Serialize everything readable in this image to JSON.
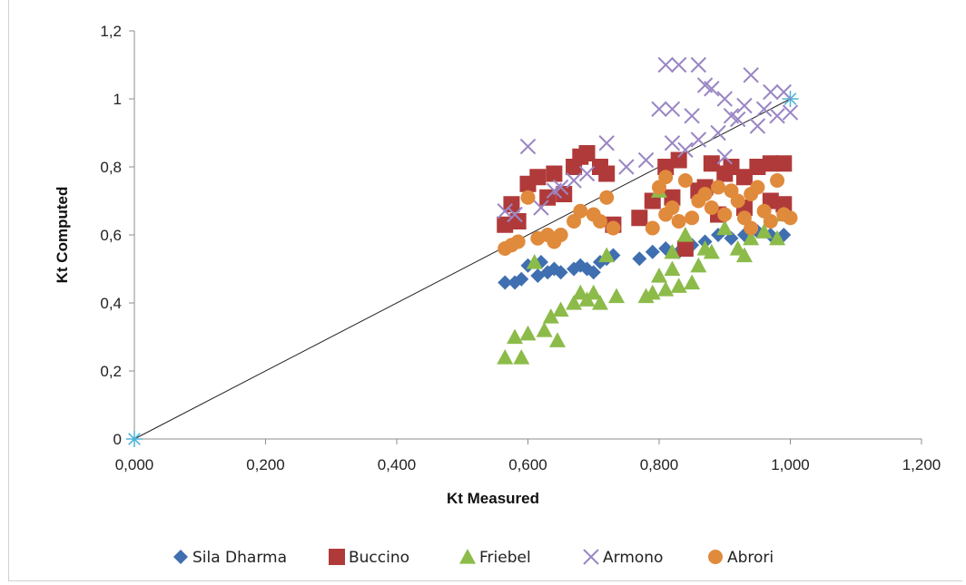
{
  "chart_data": {
    "type": "scatter",
    "title": "",
    "xlabel": "Kt Measured",
    "ylabel": "Kt Computed",
    "xlim": [
      0,
      1.2
    ],
    "ylim": [
      0,
      1.2
    ],
    "x_ticks": [
      "0,000",
      "0,200",
      "0,400",
      "0,600",
      "0,800",
      "1,000",
      "1,200"
    ],
    "y_ticks": [
      "0",
      "0,2",
      "0,4",
      "0,6",
      "0,8",
      "1",
      "1,2"
    ],
    "grid": false,
    "legend_position": "bottom",
    "reference_line": {
      "from": [
        0,
        0
      ],
      "to": [
        1,
        1
      ],
      "color": "#222222",
      "endpoint_marker_color": "#4bb4d6"
    },
    "series": [
      {
        "name": "Sila Dharma",
        "marker": "diamond",
        "color": "#3f6fb0",
        "points": [
          [
            0.565,
            0.46
          ],
          [
            0.58,
            0.46
          ],
          [
            0.59,
            0.47
          ],
          [
            0.6,
            0.51
          ],
          [
            0.615,
            0.48
          ],
          [
            0.63,
            0.49
          ],
          [
            0.64,
            0.5
          ],
          [
            0.65,
            0.49
          ],
          [
            0.67,
            0.5
          ],
          [
            0.68,
            0.51
          ],
          [
            0.69,
            0.5
          ],
          [
            0.7,
            0.49
          ],
          [
            0.71,
            0.52
          ],
          [
            0.73,
            0.54
          ],
          [
            0.77,
            0.53
          ],
          [
            0.79,
            0.55
          ],
          [
            0.81,
            0.56
          ],
          [
            0.83,
            0.55
          ],
          [
            0.85,
            0.57
          ],
          [
            0.87,
            0.58
          ],
          [
            0.89,
            0.6
          ],
          [
            0.91,
            0.59
          ],
          [
            0.93,
            0.6
          ],
          [
            0.95,
            0.61
          ],
          [
            0.97,
            0.6
          ],
          [
            0.99,
            0.6
          ],
          [
            0.62,
            0.52
          ],
          [
            0.72,
            0.53
          ]
        ]
      },
      {
        "name": "Buccino",
        "marker": "square",
        "color": "#b03a3a",
        "points": [
          [
            0.565,
            0.63
          ],
          [
            0.575,
            0.69
          ],
          [
            0.585,
            0.64
          ],
          [
            0.6,
            0.75
          ],
          [
            0.615,
            0.77
          ],
          [
            0.63,
            0.71
          ],
          [
            0.64,
            0.78
          ],
          [
            0.655,
            0.72
          ],
          [
            0.67,
            0.8
          ],
          [
            0.68,
            0.83
          ],
          [
            0.69,
            0.84
          ],
          [
            0.71,
            0.8
          ],
          [
            0.72,
            0.78
          ],
          [
            0.73,
            0.63
          ],
          [
            0.77,
            0.65
          ],
          [
            0.79,
            0.7
          ],
          [
            0.81,
            0.8
          ],
          [
            0.83,
            0.82
          ],
          [
            0.84,
            0.56
          ],
          [
            0.86,
            0.73
          ],
          [
            0.88,
            0.81
          ],
          [
            0.9,
            0.78
          ],
          [
            0.91,
            0.8
          ],
          [
            0.93,
            0.77
          ],
          [
            0.95,
            0.8
          ],
          [
            0.97,
            0.81
          ],
          [
            0.99,
            0.81
          ],
          [
            0.99,
            0.69
          ],
          [
            0.97,
            0.7
          ],
          [
            0.87,
            0.74
          ],
          [
            0.89,
            0.66
          ],
          [
            0.93,
            0.68
          ],
          [
            0.82,
            0.71
          ]
        ]
      },
      {
        "name": "Friebel",
        "marker": "triangle",
        "color": "#8cbb4a",
        "points": [
          [
            0.565,
            0.24
          ],
          [
            0.58,
            0.3
          ],
          [
            0.59,
            0.24
          ],
          [
            0.6,
            0.31
          ],
          [
            0.61,
            0.52
          ],
          [
            0.625,
            0.32
          ],
          [
            0.635,
            0.36
          ],
          [
            0.645,
            0.29
          ],
          [
            0.65,
            0.38
          ],
          [
            0.67,
            0.4
          ],
          [
            0.68,
            0.43
          ],
          [
            0.69,
            0.41
          ],
          [
            0.7,
            0.43
          ],
          [
            0.71,
            0.4
          ],
          [
            0.72,
            0.54
          ],
          [
            0.735,
            0.42
          ],
          [
            0.78,
            0.42
          ],
          [
            0.79,
            0.43
          ],
          [
            0.8,
            0.48
          ],
          [
            0.81,
            0.44
          ],
          [
            0.82,
            0.5
          ],
          [
            0.83,
            0.45
          ],
          [
            0.84,
            0.6
          ],
          [
            0.85,
            0.46
          ],
          [
            0.86,
            0.51
          ],
          [
            0.87,
            0.56
          ],
          [
            0.88,
            0.55
          ],
          [
            0.9,
            0.62
          ],
          [
            0.92,
            0.56
          ],
          [
            0.94,
            0.59
          ],
          [
            0.96,
            0.61
          ],
          [
            0.98,
            0.59
          ],
          [
            0.99,
            0.66
          ],
          [
            0.8,
            0.73
          ],
          [
            0.93,
            0.54
          ],
          [
            0.82,
            0.55
          ]
        ]
      },
      {
        "name": "Armono",
        "marker": "x",
        "color": "#9b86c4",
        "points": [
          [
            0.565,
            0.67
          ],
          [
            0.58,
            0.66
          ],
          [
            0.6,
            0.86
          ],
          [
            0.62,
            0.68
          ],
          [
            0.64,
            0.73
          ],
          [
            0.65,
            0.74
          ],
          [
            0.67,
            0.76
          ],
          [
            0.69,
            0.78
          ],
          [
            0.72,
            0.87
          ],
          [
            0.75,
            0.8
          ],
          [
            0.78,
            0.82
          ],
          [
            0.8,
            0.97
          ],
          [
            0.81,
            1.1
          ],
          [
            0.82,
            0.97
          ],
          [
            0.83,
            1.1
          ],
          [
            0.84,
            0.85
          ],
          [
            0.85,
            0.95
          ],
          [
            0.86,
            1.1
          ],
          [
            0.87,
            1.04
          ],
          [
            0.88,
            1.03
          ],
          [
            0.89,
            0.9
          ],
          [
            0.9,
            1.0
          ],
          [
            0.91,
            0.95
          ],
          [
            0.92,
            0.94
          ],
          [
            0.93,
            0.98
          ],
          [
            0.94,
            1.07
          ],
          [
            0.95,
            0.92
          ],
          [
            0.96,
            0.97
          ],
          [
            0.97,
            1.02
          ],
          [
            0.98,
            0.95
          ],
          [
            0.99,
            1.02
          ],
          [
            1.0,
            0.96
          ],
          [
            0.82,
            0.87
          ],
          [
            0.86,
            0.88
          ],
          [
            0.9,
            0.83
          ]
        ]
      },
      {
        "name": "Abrori",
        "marker": "circle",
        "color": "#e08a3c",
        "points": [
          [
            0.565,
            0.56
          ],
          [
            0.575,
            0.57
          ],
          [
            0.585,
            0.58
          ],
          [
            0.6,
            0.71
          ],
          [
            0.615,
            0.59
          ],
          [
            0.63,
            0.6
          ],
          [
            0.64,
            0.58
          ],
          [
            0.65,
            0.6
          ],
          [
            0.67,
            0.64
          ],
          [
            0.68,
            0.67
          ],
          [
            0.7,
            0.66
          ],
          [
            0.71,
            0.64
          ],
          [
            0.72,
            0.71
          ],
          [
            0.73,
            0.62
          ],
          [
            0.79,
            0.62
          ],
          [
            0.8,
            0.74
          ],
          [
            0.81,
            0.66
          ],
          [
            0.82,
            0.68
          ],
          [
            0.83,
            0.64
          ],
          [
            0.84,
            0.76
          ],
          [
            0.85,
            0.65
          ],
          [
            0.86,
            0.7
          ],
          [
            0.87,
            0.72
          ],
          [
            0.88,
            0.68
          ],
          [
            0.89,
            0.74
          ],
          [
            0.9,
            0.66
          ],
          [
            0.91,
            0.73
          ],
          [
            0.92,
            0.7
          ],
          [
            0.93,
            0.65
          ],
          [
            0.94,
            0.72
          ],
          [
            0.95,
            0.74
          ],
          [
            0.96,
            0.67
          ],
          [
            0.97,
            0.64
          ],
          [
            0.98,
            0.76
          ],
          [
            0.99,
            0.66
          ],
          [
            1.0,
            0.65
          ],
          [
            0.81,
            0.77
          ],
          [
            0.94,
            0.62
          ]
        ]
      }
    ]
  }
}
